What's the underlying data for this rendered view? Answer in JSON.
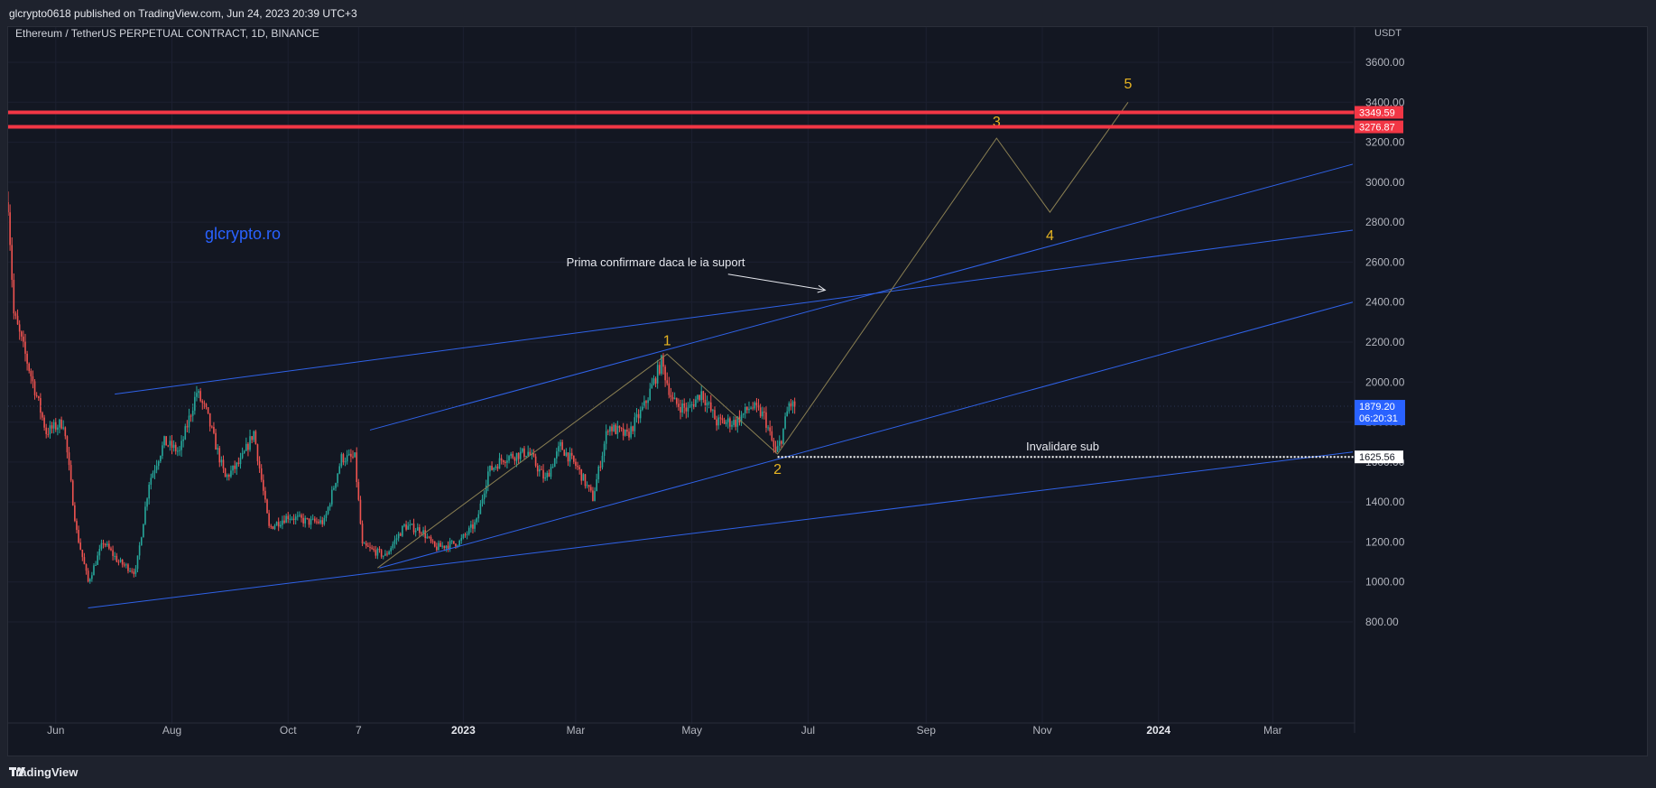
{
  "header": {
    "published": "glcrypto0618 published on TradingView.com, Jun 24, 2023 20:39 UTC+3"
  },
  "footer": {
    "brand": "TradingView"
  },
  "colors": {
    "background": "#131722",
    "grid": "#1c2030",
    "axis_text": "#b2b5be",
    "up_candle": "#26a69a",
    "down_candle": "#ef5350",
    "trendline": "#2f62e8",
    "resistance": "#f23645",
    "wave_path": "#8a7f52",
    "wave_label": "#e6b422",
    "watermark": "#2962ff",
    "last_price_badge": "#2962ff"
  },
  "chart_data": {
    "type": "candlestick",
    "symbol": "Ethereum / TetherUS PERPETUAL CONTRACT, 1D, BINANCE",
    "currency_label": "USDT",
    "watermark": "glcrypto.ro",
    "y_axis": {
      "ticks": [
        "3600.00",
        "3400.00",
        "3200.00",
        "3000.00",
        "2800.00",
        "2600.00",
        "2400.00",
        "2200.00",
        "2000.00",
        "1800.00",
        "1600.00",
        "1400.00",
        "1200.00",
        "1000.00",
        "800.00"
      ],
      "range": [
        750,
        3800
      ]
    },
    "x_axis": {
      "range": [
        "2022-05-07",
        "2024-04-12"
      ],
      "ticks": [
        {
          "label": "Jun",
          "date": "2022-06-01",
          "bold": false
        },
        {
          "label": "Aug",
          "date": "2022-08-01",
          "bold": false
        },
        {
          "label": "Oct",
          "date": "2022-10-01",
          "bold": false
        },
        {
          "label": "7",
          "date": "2022-11-07",
          "bold": false
        },
        {
          "label": "2023",
          "date": "2023-01-01",
          "bold": true
        },
        {
          "label": "Mar",
          "date": "2023-03-01",
          "bold": false
        },
        {
          "label": "May",
          "date": "2023-05-01",
          "bold": false
        },
        {
          "label": "Jul",
          "date": "2023-07-01",
          "bold": false
        },
        {
          "label": "Sep",
          "date": "2023-09-01",
          "bold": false
        },
        {
          "label": "Nov",
          "date": "2023-11-01",
          "bold": false
        },
        {
          "label": "2024",
          "date": "2024-01-01",
          "bold": true
        },
        {
          "label": "Mar",
          "date": "2024-03-01",
          "bold": false
        }
      ]
    },
    "price_path": [
      [
        "2022-05-07",
        2900
      ],
      [
        "2022-05-10",
        2340
      ],
      [
        "2022-05-20",
        2000
      ],
      [
        "2022-05-27",
        1750
      ],
      [
        "2022-06-05",
        1800
      ],
      [
        "2022-06-12",
        1250
      ],
      [
        "2022-06-18",
        1000
      ],
      [
        "2022-06-26",
        1200
      ],
      [
        "2022-07-04",
        1100
      ],
      [
        "2022-07-13",
        1050
      ],
      [
        "2022-07-20",
        1500
      ],
      [
        "2022-07-28",
        1700
      ],
      [
        "2022-08-05",
        1650
      ],
      [
        "2022-08-14",
        1950
      ],
      [
        "2022-08-19",
        1850
      ],
      [
        "2022-08-29",
        1520
      ],
      [
        "2022-09-06",
        1600
      ],
      [
        "2022-09-13",
        1750
      ],
      [
        "2022-09-21",
        1270
      ],
      [
        "2022-10-01",
        1330
      ],
      [
        "2022-10-12",
        1300
      ],
      [
        "2022-10-20",
        1300
      ],
      [
        "2022-10-29",
        1620
      ],
      [
        "2022-11-05",
        1620
      ],
      [
        "2022-11-09",
        1180
      ],
      [
        "2022-11-21",
        1130
      ],
      [
        "2022-12-01",
        1280
      ],
      [
        "2022-12-10",
        1260
      ],
      [
        "2022-12-17",
        1170
      ],
      [
        "2022-12-30",
        1200
      ],
      [
        "2023-01-08",
        1300
      ],
      [
        "2023-01-14",
        1550
      ],
      [
        "2023-01-22",
        1620
      ],
      [
        "2023-02-04",
        1650
      ],
      [
        "2023-02-13",
        1510
      ],
      [
        "2023-02-21",
        1680
      ],
      [
        "2023-03-02",
        1570
      ],
      [
        "2023-03-10",
        1420
      ],
      [
        "2023-03-18",
        1780
      ],
      [
        "2023-03-28",
        1730
      ],
      [
        "2023-04-06",
        1880
      ],
      [
        "2023-04-15",
        2100
      ],
      [
        "2023-04-21",
        1900
      ],
      [
        "2023-04-29",
        1860
      ],
      [
        "2023-05-06",
        1950
      ],
      [
        "2023-05-14",
        1800
      ],
      [
        "2023-05-24",
        1800
      ],
      [
        "2023-06-01",
        1880
      ],
      [
        "2023-06-08",
        1830
      ],
      [
        "2023-06-14",
        1640
      ],
      [
        "2023-06-17",
        1720
      ],
      [
        "2023-06-21",
        1890
      ],
      [
        "2023-06-24",
        1879
      ]
    ],
    "trendlines": [
      {
        "name": "upper-channel",
        "from": [
          "2022-07-02",
          1940
        ],
        "to": [
          "2024-04-12",
          2760
        ]
      },
      {
        "name": "wave1-line",
        "from": [
          "2022-11-13",
          1760
        ],
        "to": [
          "2024-04-12",
          3090
        ]
      },
      {
        "name": "wave2-line",
        "from": [
          "2022-11-18",
          1070
        ],
        "to": [
          "2024-04-12",
          2400
        ]
      },
      {
        "name": "lower-channel",
        "from": [
          "2022-06-18",
          870
        ],
        "to": [
          "2024-04-12",
          1650
        ]
      }
    ],
    "horizontal_levels": [
      {
        "price": 3349.59,
        "label": "3349.59",
        "color": "#f23645"
      },
      {
        "price": 3276.87,
        "label": "3276.87",
        "color": "#f23645"
      }
    ],
    "invalidation_level": {
      "price": 1625.56,
      "label": "1625.56",
      "start": "2023-06-15",
      "text": "Invalidare sub"
    },
    "last_price": {
      "price": 1879.2,
      "label": "1879.20",
      "countdown": "06:20:31"
    },
    "wave_path": [
      [
        "2022-11-17",
        1070
      ],
      [
        "2023-04-18",
        2140
      ],
      [
        "2023-06-15",
        1640
      ],
      [
        "2023-10-08",
        3220
      ],
      [
        "2023-11-05",
        2850
      ],
      [
        "2023-12-16",
        3400
      ]
    ],
    "wave_labels": [
      {
        "text": "1",
        "date": "2023-04-18",
        "price": 2185
      },
      {
        "text": "2",
        "date": "2023-06-15",
        "price": 1540
      },
      {
        "text": "3",
        "date": "2023-10-08",
        "price": 3280
      },
      {
        "text": "4",
        "date": "2023-11-05",
        "price": 2710
      },
      {
        "text": "5",
        "date": "2023-12-16",
        "price": 3470
      }
    ],
    "annotation": {
      "text": "Prima confirmare daca le ia suport",
      "date": "2023-04-12",
      "price": 2580,
      "arrow_from": [
        "2023-05-20",
        2540
      ],
      "arrow_to": [
        "2023-07-10",
        2460
      ]
    }
  }
}
